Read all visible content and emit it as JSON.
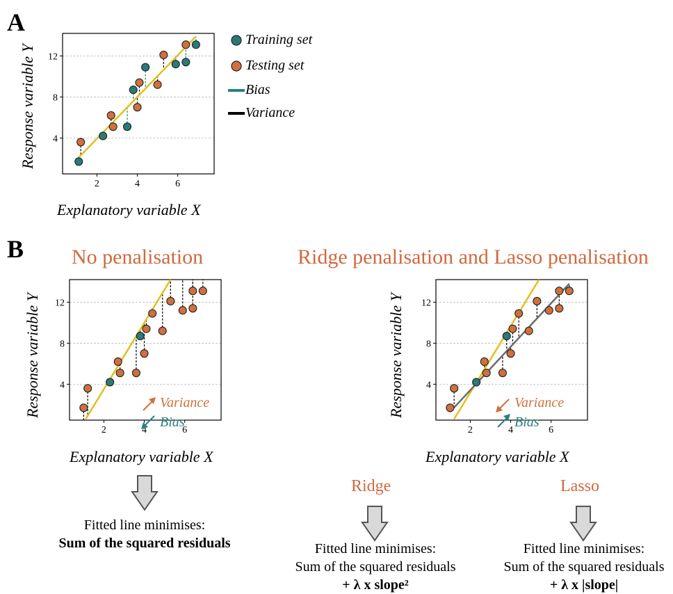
{
  "panel_a": {
    "letter": "A",
    "xlabel": "Explanatory variable X",
    "ylabel": "Response variable Y",
    "legend": {
      "training": "Training set",
      "testing": "Testing set",
      "bias": "Bias",
      "variance": "Variance"
    }
  },
  "panel_b": {
    "letter": "B",
    "left_title": "No penalisation",
    "right_title": "Ridge penalisation and Lasso penalisation",
    "xlabel": "Explanatory variable X",
    "ylabel": "Response variable Y",
    "left_arrows": {
      "variance": "Variance",
      "bias": "Bias"
    },
    "right_arrows": {
      "variance": "Variance",
      "bias": "Bias"
    },
    "ridge_label": "Ridge",
    "lasso_label": "Lasso",
    "left_caption": {
      "line1": "Fitted line minimises:",
      "line2": "Sum of the squared residuals"
    },
    "ridge_caption": {
      "line1": "Fitted line minimises:",
      "line2": "Sum of the squared residuals",
      "line3": "+ λ x slope²"
    },
    "lasso_caption": {
      "line1": "Fitted line minimises:",
      "line2": "Sum of the squared residuals",
      "line3": "+ λ x |slope|"
    }
  },
  "colors": {
    "training": "#2a7a78",
    "testing": "#d0703e",
    "fit_line": "#e0c020",
    "penalised_line": "#6b6b6b",
    "bias_line": "#2a8080",
    "title_orange": "#d0693e",
    "arrow_fill": "#d9d9d9"
  },
  "chart_data": [
    {
      "type": "scatter",
      "title": "",
      "xlabel": "Explanatory variable X",
      "ylabel": "Response variable Y",
      "xticks": [
        2,
        4,
        6
      ],
      "yticks": [
        4,
        8,
        12
      ],
      "xlim": [
        0.3,
        7.8
      ],
      "ylim": [
        0.5,
        14.2
      ],
      "series": [
        {
          "name": "Training set",
          "x": [
            1.1,
            2.3,
            3.5,
            3.8,
            4.4,
            5.9,
            6.4,
            6.9
          ],
          "y": [
            1.7,
            4.2,
            5.1,
            8.7,
            10.9,
            11.2,
            11.4,
            13.1
          ]
        },
        {
          "name": "Testing set",
          "x": [
            1.2,
            2.7,
            2.8,
            4.0,
            4.1,
            5.0,
            5.3,
            6.4
          ],
          "y": [
            3.6,
            6.2,
            5.1,
            7.0,
            9.4,
            9.2,
            12.1,
            13.1
          ]
        }
      ],
      "fit_line": {
        "x": [
          1.0,
          6.9
        ],
        "y": [
          1.9,
          13.9
        ]
      }
    },
    {
      "type": "scatter",
      "title": "No penalisation",
      "xlabel": "Explanatory variable X",
      "ylabel": "Response variable Y",
      "xticks": [
        2,
        4,
        6
      ],
      "yticks": [
        4,
        8,
        12
      ],
      "xlim": [
        0.3,
        7.8
      ],
      "ylim": [
        0.5,
        14.2
      ],
      "series": [
        {
          "name": "Training set",
          "x": [
            2.3,
            3.8
          ],
          "y": [
            4.2,
            8.7
          ]
        },
        {
          "name": "Testing set",
          "x": [
            1.0,
            1.2,
            2.7,
            2.8,
            3.6,
            4.0,
            4.1,
            4.4,
            4.9,
            5.3,
            5.9,
            6.4,
            6.4,
            6.9
          ],
          "y": [
            1.7,
            3.6,
            6.2,
            5.1,
            5.1,
            7.0,
            9.4,
            10.9,
            9.2,
            12.1,
            11.2,
            13.1,
            11.4,
            13.1
          ]
        }
      ],
      "fit_line": {
        "x": [
          1.1,
          5.3
        ],
        "y": [
          0.6,
          14.2
        ]
      }
    },
    {
      "type": "scatter",
      "title": "Ridge penalisation and Lasso penalisation",
      "xlabel": "Explanatory variable X",
      "ylabel": "Response variable Y",
      "xticks": [
        2,
        4,
        6
      ],
      "yticks": [
        4,
        8,
        12
      ],
      "xlim": [
        0.3,
        7.8
      ],
      "ylim": [
        0.5,
        14.2
      ],
      "series": [
        {
          "name": "Training set",
          "x": [
            2.3,
            3.8
          ],
          "y": [
            4.2,
            8.7
          ]
        },
        {
          "name": "Testing set",
          "x": [
            1.0,
            1.2,
            2.7,
            2.8,
            3.6,
            4.0,
            4.1,
            4.4,
            4.9,
            5.3,
            5.9,
            6.4,
            6.4,
            6.9
          ],
          "y": [
            1.7,
            3.6,
            6.2,
            5.1,
            5.1,
            7.0,
            9.4,
            10.9,
            9.2,
            12.1,
            11.2,
            13.1,
            11.4,
            13.1
          ]
        }
      ],
      "fit_line": {
        "x": [
          1.2,
          5.4
        ],
        "y": [
          0.6,
          14.2
        ]
      },
      "penalised_line": {
        "x": [
          1.0,
          6.9
        ],
        "y": [
          1.3,
          13.8
        ]
      }
    }
  ]
}
